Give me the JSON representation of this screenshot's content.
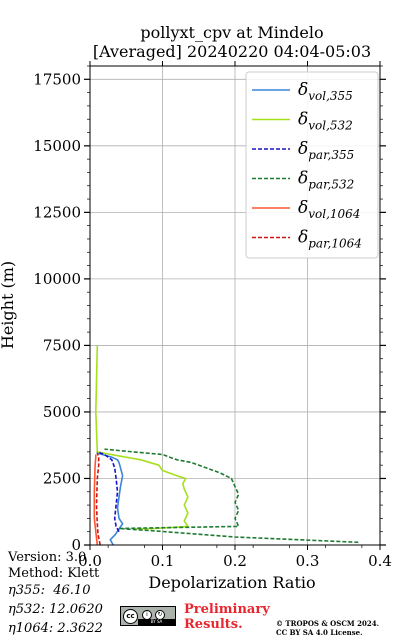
{
  "chart_data": {
    "type": "line",
    "title": "pollyxt_cpv at Mindelo",
    "subtitle": "[Averaged] 20240220 04:04-05:03",
    "xlabel": "Depolarization Ratio",
    "ylabel": "Height (m)",
    "xlim": [
      0.0,
      0.4
    ],
    "ylim": [
      0,
      18000
    ],
    "xticks": [
      "0.0",
      "0.1",
      "0.2",
      "0.3",
      "0.4"
    ],
    "yticks": [
      "0",
      "2500",
      "5000",
      "7500",
      "10000",
      "12500",
      "15000",
      "17500"
    ],
    "grid": true,
    "legend_position": "upper right",
    "colors": {
      "vol_355": "#3a86d8",
      "vol_532": "#a6e01d",
      "par_355": "#1a12c8",
      "par_532": "#1f7a32",
      "vol_1064": "#ff5530",
      "par_1064": "#d01414"
    },
    "series": [
      {
        "name": "δ_vol,355",
        "key": "vol_355",
        "style": "solid",
        "x": [
          0.032,
          0.028,
          0.035,
          0.04,
          0.045,
          0.04,
          0.038,
          0.04,
          0.042,
          0.045,
          0.042,
          0.04,
          0.038,
          0.03,
          0.02,
          0.01,
          0.01
        ],
        "y": [
          0,
          200,
          400,
          600,
          800,
          1000,
          1400,
          1800,
          2200,
          2600,
          2900,
          3100,
          3200,
          3300,
          3380,
          3450,
          3500
        ]
      },
      {
        "name": "δ_vol,532",
        "key": "vol_532",
        "style": "solid",
        "x": [
          0.06,
          0.09,
          0.135,
          0.13,
          0.135,
          0.13,
          0.135,
          0.13,
          0.128,
          0.132,
          0.12,
          0.11,
          0.1,
          0.095,
          0.07,
          0.04,
          0.01,
          0.008,
          0.01
        ],
        "y": [
          600,
          620,
          700,
          900,
          1200,
          1500,
          1800,
          2100,
          2300,
          2500,
          2600,
          2700,
          2800,
          3000,
          3200,
          3350,
          3500,
          5000,
          7500
        ]
      },
      {
        "name": "δ_par,355",
        "key": "par_355",
        "style": "dashed",
        "x": [
          0.04,
          0.036,
          0.034,
          0.036,
          0.038,
          0.036,
          0.034,
          0.03,
          0.02,
          0.01
        ],
        "y": [
          500,
          700,
          1000,
          1500,
          2000,
          2500,
          2900,
          3200,
          3400,
          3500
        ]
      },
      {
        "name": "δ_par,532",
        "key": "par_532",
        "style": "dashed",
        "x": [
          0.37,
          0.2,
          0.08,
          0.04,
          0.205,
          0.2,
          0.205,
          0.2,
          0.205,
          0.2,
          0.195,
          0.18,
          0.16,
          0.14,
          0.12,
          0.11,
          0.1,
          0.06,
          0.02
        ],
        "y": [
          100,
          300,
          550,
          620,
          700,
          1000,
          1300,
          1600,
          1900,
          2200,
          2500,
          2700,
          2900,
          3100,
          3200,
          3300,
          3400,
          3500,
          3600
        ]
      },
      {
        "name": "δ_vol,1064",
        "key": "vol_1064",
        "style": "solid",
        "x": [
          0.01,
          0.008,
          0.006,
          0.006,
          0.007,
          0.008,
          0.008
        ],
        "y": [
          0,
          500,
          1000,
          2000,
          3000,
          3300,
          3400
        ]
      },
      {
        "name": "δ_par,1064",
        "key": "par_1064",
        "style": "dashed",
        "x": [
          0.014,
          0.011,
          0.01,
          0.009,
          0.01,
          0.012,
          0.012,
          0.01
        ],
        "y": [
          0,
          400,
          800,
          1500,
          2500,
          3000,
          3300,
          3450
        ]
      }
    ]
  },
  "legend": [
    {
      "main": "δ",
      "sub": "vol,355",
      "key": "vol_355",
      "style": "solid"
    },
    {
      "main": "δ",
      "sub": "vol,532",
      "key": "vol_532",
      "style": "solid"
    },
    {
      "main": "δ",
      "sub": "par,355",
      "key": "par_355",
      "style": "dashed"
    },
    {
      "main": "δ",
      "sub": "par,532",
      "key": "par_532",
      "style": "dashed"
    },
    {
      "main": "δ",
      "sub": "vol,1064",
      "key": "vol_1064",
      "style": "solid"
    },
    {
      "main": "δ",
      "sub": "par,1064",
      "key": "par_1064",
      "style": "dashed"
    }
  ],
  "footer": {
    "version": "Version: 3.0",
    "method": "Method: Klett",
    "eta355": "η355:  46.10",
    "eta532": "η532: 12.0620",
    "eta1064": "η1064: 2.3622",
    "preliminary_line1": "Preliminary",
    "preliminary_line2": "Results.",
    "copyright_line1": "© TROPOS & OSCM 2024.",
    "copyright_line2": "CC BY SA 4.0 License.",
    "cc_badge_text": "BY  SA",
    "cc_label": "cc"
  }
}
